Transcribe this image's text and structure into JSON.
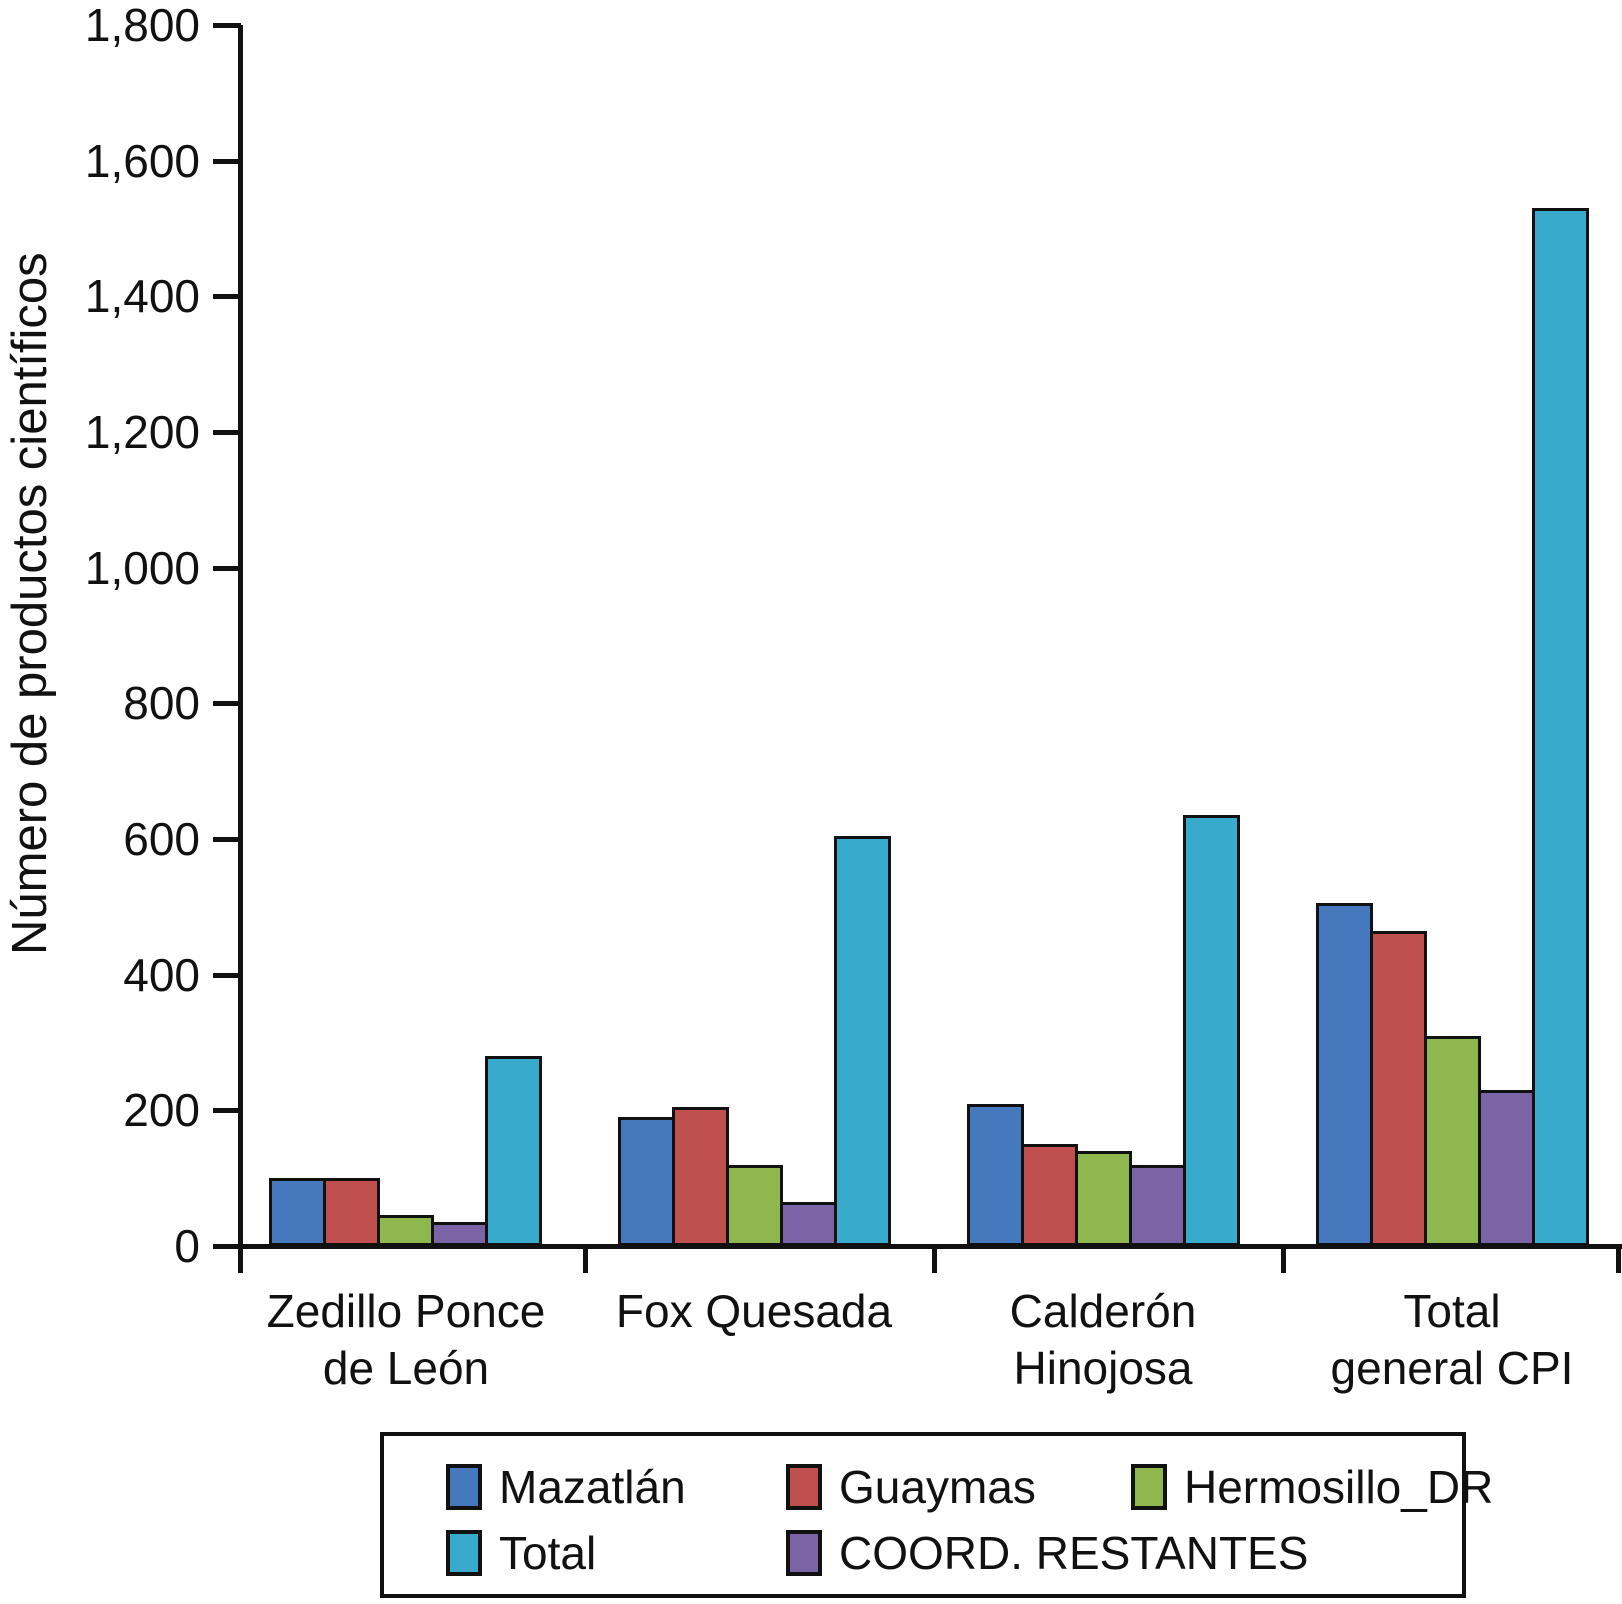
{
  "chart_data": {
    "type": "bar",
    "title": "",
    "xlabel": "",
    "ylabel": "Número de productos científicos",
    "ylim": [
      0,
      1800
    ],
    "ytick_step": 200,
    "grid": false,
    "legend_position": "bottom",
    "categories": [
      "Zedillo Ponce de León",
      "Fox Quesada",
      "Calderón Hinojosa",
      "Total general CPI"
    ],
    "category_label_lines": [
      [
        "Zedillo Ponce",
        "de León"
      ],
      [
        "Fox Quesada"
      ],
      [
        "Calderón",
        "Hinojosa"
      ],
      [
        "Total",
        "general CPI"
      ]
    ],
    "series": [
      {
        "name": "Mazatlán",
        "color": "#4479BE",
        "values": [
          100,
          190,
          210,
          505
        ]
      },
      {
        "name": "Guaymas",
        "color": "#C0504D",
        "values": [
          100,
          205,
          150,
          465
        ]
      },
      {
        "name": "Hermosillo_DR",
        "color": "#8EB84E",
        "values": [
          45,
          120,
          140,
          310
        ]
      },
      {
        "name": "COORD. RESTANTES",
        "color": "#7A64A5",
        "values": [
          35,
          65,
          120,
          230
        ]
      },
      {
        "name": "Total",
        "color": "#38ABCD",
        "values": [
          280,
          605,
          635,
          1530
        ]
      }
    ],
    "legend_rows": [
      [
        "Mazatlán",
        "Guaymas",
        "Hermosillo_DR"
      ],
      [
        "Total",
        "COORD. RESTANTES"
      ]
    ],
    "axis_color": "#111111",
    "background_color": "#FFFFFF"
  }
}
